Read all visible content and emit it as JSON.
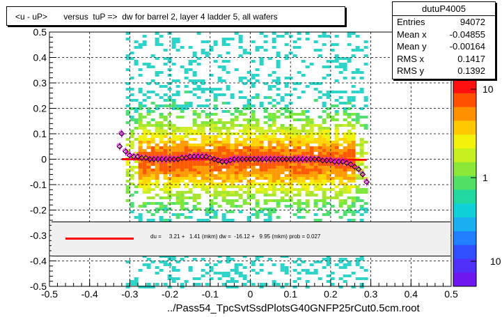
{
  "title": "<u - uP>       versus  tuP =>  dw for barrel 2, layer 4 ladder 5, all wafers",
  "stats": {
    "name": "dutuP4005",
    "rows": [
      {
        "key": "Entries",
        "value": "94072"
      },
      {
        "key": "Mean x",
        "value": "-0.04855"
      },
      {
        "key": "Mean y",
        "value": "-0.00164"
      },
      {
        "key": "RMS x",
        "value": "0.1417"
      },
      {
        "key": "RMS y",
        "value": "0.1392"
      }
    ]
  },
  "fit_legend": "du =     3.21 +   1.41 (mkm) dw =  -16.12 +   9.95 (mkm) prob = 0.027",
  "xlabel": "../Pass54_TpcSvtSsdPlotsG40GNFP25rCut0.5cm.root",
  "colors": {
    "fit_line": "#ff0000",
    "profile_marker": "#000000",
    "profile_magenta": "#ff00ff"
  },
  "chart_data": {
    "type": "heatmap",
    "xlim": [
      -0.5,
      0.5
    ],
    "ylim": [
      -0.5,
      0.5
    ],
    "x_ticks": [
      "-0.5",
      "-0.4",
      "-0.3",
      "-0.2",
      "-0.1",
      "0",
      "0.1",
      "0.2",
      "0.3",
      "0.4",
      "0.5"
    ],
    "y_ticks": [
      "-0.5",
      "-0.4",
      "-0.3",
      "-0.2",
      "-0.1",
      "0",
      "0.1",
      "0.2",
      "0.3",
      "0.4",
      "0.5"
    ],
    "grid": true,
    "z_scale": "log",
    "colorbar_labels": [
      "10",
      "1",
      "10"
    ],
    "profile_points": [
      {
        "x": -0.325,
        "y": 0.05
      },
      {
        "x": -0.32,
        "y": 0.1
      },
      {
        "x": -0.31,
        "y": 0.03
      },
      {
        "x": -0.3,
        "y": 0.015
      },
      {
        "x": -0.29,
        "y": 0.01
      },
      {
        "x": -0.28,
        "y": 0.01
      },
      {
        "x": -0.27,
        "y": 0.005
      },
      {
        "x": -0.26,
        "y": 0.005
      },
      {
        "x": -0.25,
        "y": 0.0
      },
      {
        "x": -0.24,
        "y": 0.0
      },
      {
        "x": -0.23,
        "y": 0.0
      },
      {
        "x": -0.22,
        "y": 0.0
      },
      {
        "x": -0.21,
        "y": 0.0
      },
      {
        "x": -0.2,
        "y": 0.0
      },
      {
        "x": -0.19,
        "y": 0.0
      },
      {
        "x": -0.18,
        "y": 0.0
      },
      {
        "x": -0.17,
        "y": 0.005
      },
      {
        "x": -0.16,
        "y": 0.005
      },
      {
        "x": -0.15,
        "y": 0.01
      },
      {
        "x": -0.14,
        "y": 0.01
      },
      {
        "x": -0.13,
        "y": 0.01
      },
      {
        "x": -0.12,
        "y": 0.01
      },
      {
        "x": -0.11,
        "y": 0.01
      },
      {
        "x": -0.1,
        "y": 0.005
      },
      {
        "x": -0.09,
        "y": 0.0
      },
      {
        "x": -0.08,
        "y": -0.005
      },
      {
        "x": -0.07,
        "y": -0.01
      },
      {
        "x": -0.06,
        "y": -0.01
      },
      {
        "x": -0.05,
        "y": -0.005
      },
      {
        "x": -0.04,
        "y": 0.0
      },
      {
        "x": -0.03,
        "y": 0.0
      },
      {
        "x": -0.02,
        "y": 0.0
      },
      {
        "x": -0.01,
        "y": 0.0
      },
      {
        "x": 0.0,
        "y": 0.0
      },
      {
        "x": 0.01,
        "y": 0.0
      },
      {
        "x": 0.02,
        "y": 0.0
      },
      {
        "x": 0.03,
        "y": 0.0
      },
      {
        "x": 0.04,
        "y": 0.0
      },
      {
        "x": 0.05,
        "y": 0.0
      },
      {
        "x": 0.06,
        "y": 0.0
      },
      {
        "x": 0.07,
        "y": 0.0
      },
      {
        "x": 0.08,
        "y": 0.0
      },
      {
        "x": 0.09,
        "y": 0.0
      },
      {
        "x": 0.1,
        "y": 0.0
      },
      {
        "x": 0.11,
        "y": 0.0
      },
      {
        "x": 0.12,
        "y": 0.0
      },
      {
        "x": 0.13,
        "y": 0.0
      },
      {
        "x": 0.14,
        "y": 0.0
      },
      {
        "x": 0.15,
        "y": 0.0
      },
      {
        "x": 0.16,
        "y": 0.0
      },
      {
        "x": 0.17,
        "y": 0.0
      },
      {
        "x": 0.18,
        "y": -0.005
      },
      {
        "x": 0.19,
        "y": -0.005
      },
      {
        "x": 0.2,
        "y": -0.005
      },
      {
        "x": 0.21,
        "y": -0.01
      },
      {
        "x": 0.22,
        "y": -0.01
      },
      {
        "x": 0.23,
        "y": -0.01
      },
      {
        "x": 0.24,
        "y": -0.015
      },
      {
        "x": 0.25,
        "y": -0.02
      },
      {
        "x": 0.26,
        "y": -0.03
      },
      {
        "x": 0.27,
        "y": -0.04
      },
      {
        "x": 0.28,
        "y": -0.06
      },
      {
        "x": 0.29,
        "y": -0.09
      }
    ],
    "fit_line": {
      "x": [
        -0.32,
        0.29
      ],
      "y": [
        0.0,
        -0.002
      ]
    }
  }
}
